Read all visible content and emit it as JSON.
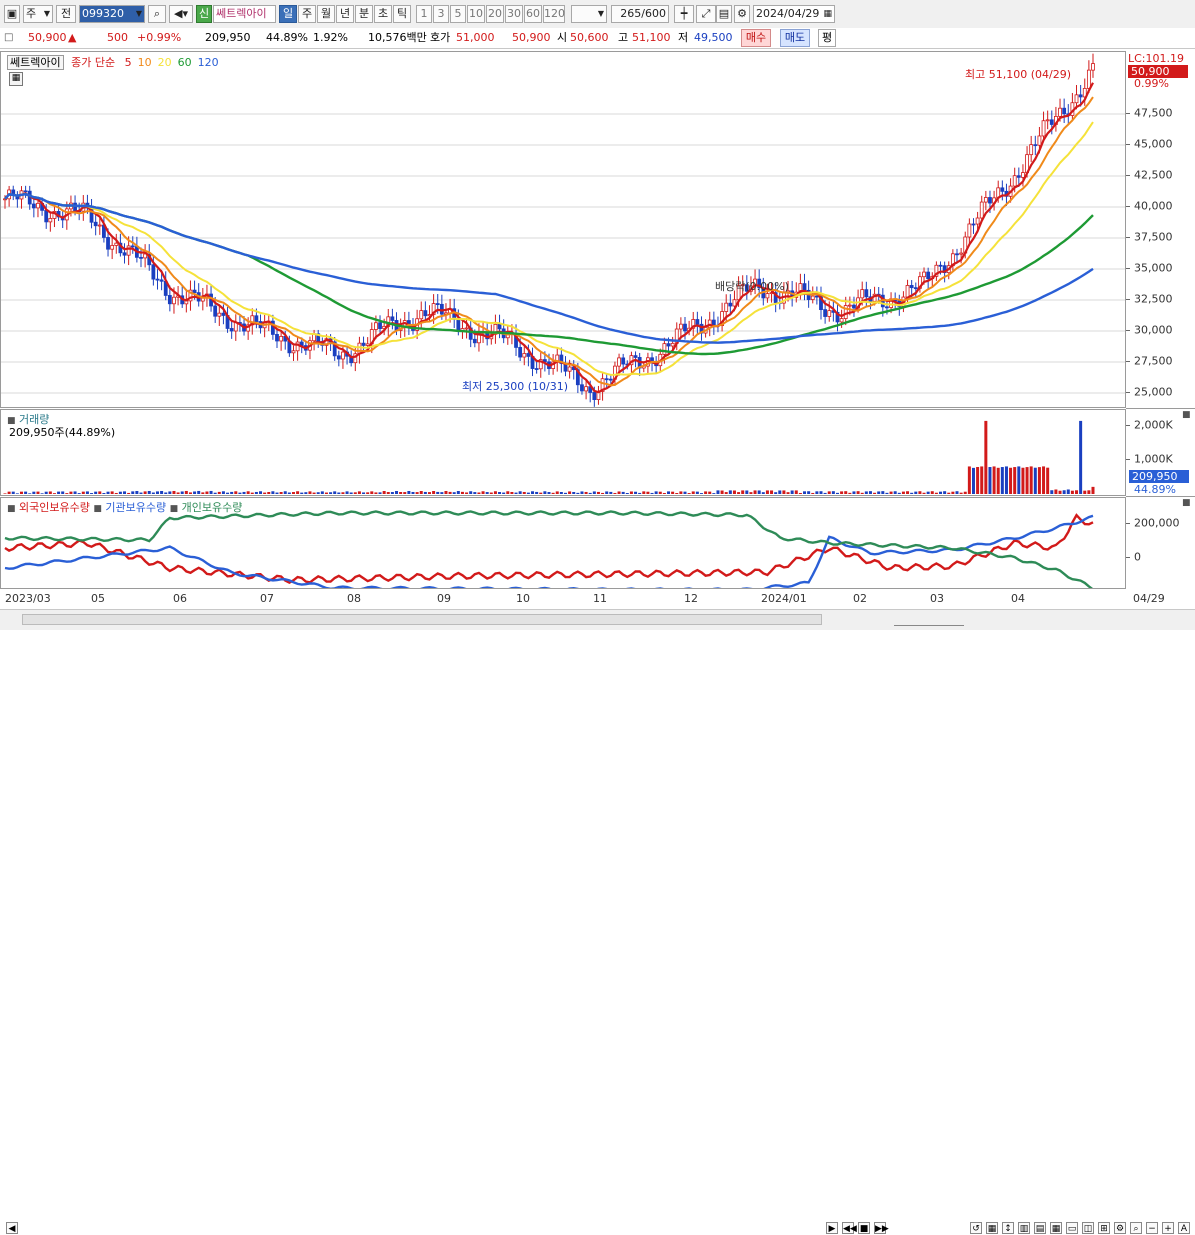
{
  "toolbar": {
    "period_select": "주",
    "prev_label": "전",
    "stock_code": "099320",
    "credit_badge": "신",
    "stock_name": "쎄트렉아이",
    "tabs": [
      "일",
      "주",
      "월",
      "년",
      "분",
      "초",
      "틱"
    ],
    "active_tab": "일",
    "intervals": [
      "1",
      "3",
      "5",
      "10",
      "20",
      "30",
      "60",
      "120"
    ],
    "count": "265",
    "count_total": "/600",
    "date": "2024/04/29"
  },
  "quote": {
    "price": "50,900",
    "arrow": "▲",
    "change": "500",
    "change_pct": "+0.99%",
    "volume": "209,950",
    "volume_pct": "44.89%",
    "turnover_pct": "1.92%",
    "amount": "10,576백만",
    "bid_label": "호가",
    "ask_price": "51,000",
    "bid_price": "50,900",
    "open_label": "시",
    "open": "50,600",
    "high_label": "고",
    "high": "51,100",
    "low_label": "저",
    "low": "49,500",
    "buy_label": "매수",
    "sell_label": "매도",
    "pyeong_label": "평"
  },
  "price_panel": {
    "title": "쎄트렉아이",
    "ma_legend_prefix": "종가 단순",
    "ma_periods": [
      "5",
      "10",
      "20",
      "60",
      "120"
    ],
    "ma_colors": [
      "#d21a1a",
      "#f08a1a",
      "#f5e23a",
      "#1e9a34",
      "#2a5fd6"
    ],
    "lc_label": "LC:101.19",
    "current_price_box": "50,900",
    "change_pct_box": "0.99%",
    "high_note": "최고 51,100 (04/29)",
    "low_note": "최저 25,300 (10/31)",
    "dividend_note": "배당락(0.00%)",
    "y_labels": [
      "47,500",
      "45,000",
      "42,500",
      "40,000",
      "37,500",
      "35,000",
      "32,500",
      "30,000",
      "27,500",
      "25,000"
    ]
  },
  "volume_panel": {
    "title": "거래량",
    "value_text": "209,950주(44.89%)",
    "y_labels": [
      "2,000K",
      "1,000K"
    ],
    "current_box": "209,950",
    "pct_box": "44.89%"
  },
  "holding_panel": {
    "legend": [
      "외국인보유수량",
      "기관보유수량",
      "개인보유수량"
    ],
    "legend_colors": [
      "#d21a1a",
      "#2a5fd6",
      "#2e8b57"
    ],
    "y_labels": [
      "200,000",
      "0"
    ]
  },
  "x_labels": [
    "2023/03",
    "05",
    "06",
    "07",
    "08",
    "09",
    "10",
    "11",
    "12",
    "2024/01",
    "02",
    "03",
    "04"
  ],
  "x_right_label": "04/29",
  "chart_data": {
    "type": "line",
    "title": "쎄트렉아이",
    "x": [
      "2023/03",
      "05",
      "06",
      "07",
      "08",
      "09",
      "10",
      "11",
      "12",
      "2024/01",
      "02",
      "03",
      "04",
      "04/29"
    ],
    "series": [
      {
        "name": "종가",
        "values": [
          40500,
          39000,
          33000,
          30000,
          28000,
          31500,
          29000,
          25300,
          29000,
          33500,
          31500,
          33500,
          42000,
          50900
        ]
      }
    ],
    "ylim": [
      24000,
      51000
    ],
    "volume": [
      50000,
      60000,
      90000,
      60000,
      50000,
      80000,
      60000,
      50000,
      60000,
      150000,
      80000,
      70000,
      2150000,
      209950
    ]
  }
}
